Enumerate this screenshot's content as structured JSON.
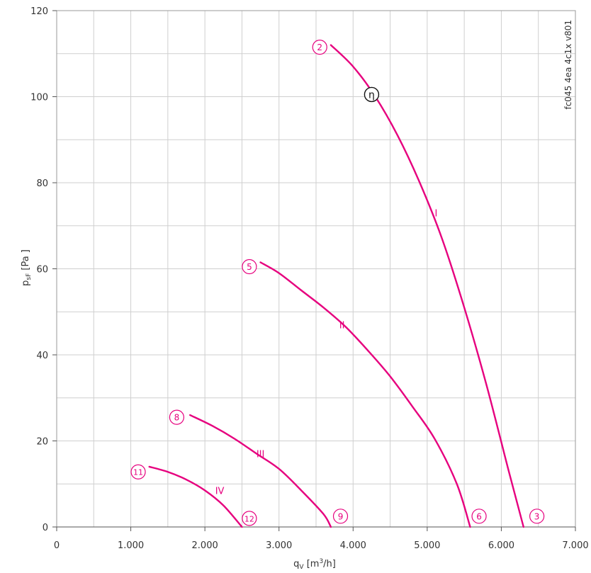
{
  "chart_data": {
    "type": "line",
    "xlabel_main": "q",
    "xlabel_sub": "V",
    "xlabel_unit_pre": "[m",
    "xlabel_unit_sup": "3",
    "xlabel_unit_post": "/h]",
    "ylabel_main": "p",
    "ylabel_sub": "sF",
    "ylabel_unit": "[Pa ]",
    "xlim": [
      0,
      7000
    ],
    "ylim": [
      0,
      120
    ],
    "x_ticks": [
      0,
      1000,
      2000,
      3000,
      4000,
      5000,
      6000,
      7000
    ],
    "x_tick_labels": [
      "0",
      "1.000",
      "2.000",
      "3.000",
      "4.000",
      "5.000",
      "6.000",
      "7.000"
    ],
    "y_ticks": [
      0,
      20,
      40,
      60,
      80,
      100,
      120
    ],
    "y_tick_labels": [
      "0",
      "20",
      "40",
      "60",
      "80",
      "100",
      "120"
    ],
    "grid": true,
    "side_note": "fc045 4ea 4c1x v801",
    "curve_color": "#e6007e",
    "series": [
      {
        "name": "I",
        "label_at": [
          5120,
          73
        ],
        "x": [
          3700,
          4000,
          4300,
          4600,
          4900,
          5200,
          5500,
          5800,
          6100,
          6300
        ],
        "y": [
          112,
          107,
          100,
          91,
          80,
          67,
          51,
          33,
          13,
          0
        ]
      },
      {
        "name": "II",
        "label_at": [
          3850,
          47
        ],
        "x": [
          2750,
          3000,
          3300,
          3600,
          3900,
          4200,
          4500,
          4800,
          5100,
          5400,
          5580
        ],
        "y": [
          61.5,
          59,
          55,
          51,
          46.5,
          41,
          35,
          28,
          20.5,
          10,
          0
        ]
      },
      {
        "name": "III",
        "label_at": [
          2750,
          17
        ],
        "x": [
          1800,
          2100,
          2400,
          2700,
          3000,
          3300,
          3600,
          3700
        ],
        "y": [
          26,
          23.5,
          20.5,
          17,
          13.5,
          8.5,
          3,
          0
        ]
      },
      {
        "name": "IV",
        "label_at": [
          2200,
          8.5
        ],
        "x": [
          1250,
          1500,
          1750,
          2000,
          2250,
          2500
        ],
        "y": [
          14,
          12.8,
          11,
          8.5,
          5,
          0
        ]
      }
    ],
    "points": [
      {
        "label": "2",
        "x": 3550,
        "y": 111.5
      },
      {
        "label": "3",
        "x": 6480,
        "y": 2.5
      },
      {
        "label": "5",
        "x": 2600,
        "y": 60.5
      },
      {
        "label": "6",
        "x": 5700,
        "y": 2.5
      },
      {
        "label": "8",
        "x": 1620,
        "y": 25.5
      },
      {
        "label": "9",
        "x": 3830,
        "y": 2.5
      },
      {
        "label": "11",
        "x": 1100,
        "y": 12.8
      },
      {
        "label": "12",
        "x": 2600,
        "y": 2
      }
    ],
    "eta_marker": {
      "label": "η",
      "x": 4250,
      "y": 100.5
    }
  }
}
